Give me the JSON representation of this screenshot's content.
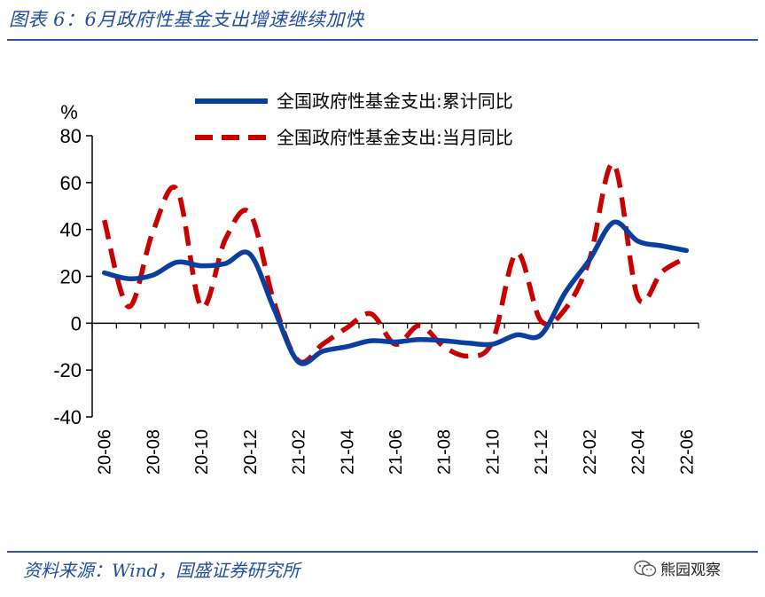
{
  "figure": {
    "title": "图表 6：6月政府性基金支出增速继续加快",
    "source": "资料来源：Wind，国盛证券研究所",
    "watermark": "熊园观察"
  },
  "colors": {
    "cumulative": "#0a3fa0",
    "monthly": "#c80000",
    "accent": "#1f4e9e"
  },
  "chart_data": {
    "type": "line",
    "title": "",
    "ylabel": "%",
    "xlabel": "",
    "ylim": [
      -40,
      80
    ],
    "yticks": [
      80,
      60,
      40,
      20,
      0,
      -20,
      -40
    ],
    "x_tick_labels": [
      "20-06",
      "20-08",
      "20-10",
      "20-12",
      "21-02",
      "21-04",
      "21-06",
      "21-08",
      "21-10",
      "21-12",
      "22-02",
      "22-04",
      "22-06"
    ],
    "x": [
      "20-06",
      "20-07",
      "20-08",
      "20-09",
      "20-10",
      "20-11",
      "20-12",
      "21-01",
      "21-02",
      "21-03",
      "21-04",
      "21-05",
      "21-06",
      "21-07",
      "21-08",
      "21-09",
      "21-10",
      "21-11",
      "21-12",
      "22-01",
      "22-02",
      "22-03",
      "22-04",
      "22-05",
      "22-06"
    ],
    "legend_position": "top-center",
    "series": [
      {
        "name": "全国政府性基金支出:累计同比",
        "style": "solid",
        "values": [
          21.5,
          19,
          20.5,
          26,
          24.5,
          25.5,
          29.5,
          6,
          -16.5,
          -12,
          -10,
          -7.5,
          -8,
          -7,
          -7.5,
          -8.5,
          -9,
          -5,
          -5,
          13,
          27,
          43,
          35,
          33,
          31
        ]
      },
      {
        "name": "全国政府性基金支出:当月同比",
        "style": "dashed",
        "values": [
          44,
          7,
          39,
          57,
          7,
          36,
          47,
          9,
          -16,
          -9,
          -2,
          4,
          -9,
          -1,
          -10,
          -14,
          -8,
          30,
          1,
          6,
          27,
          68,
          11,
          22,
          28
        ]
      }
    ]
  }
}
